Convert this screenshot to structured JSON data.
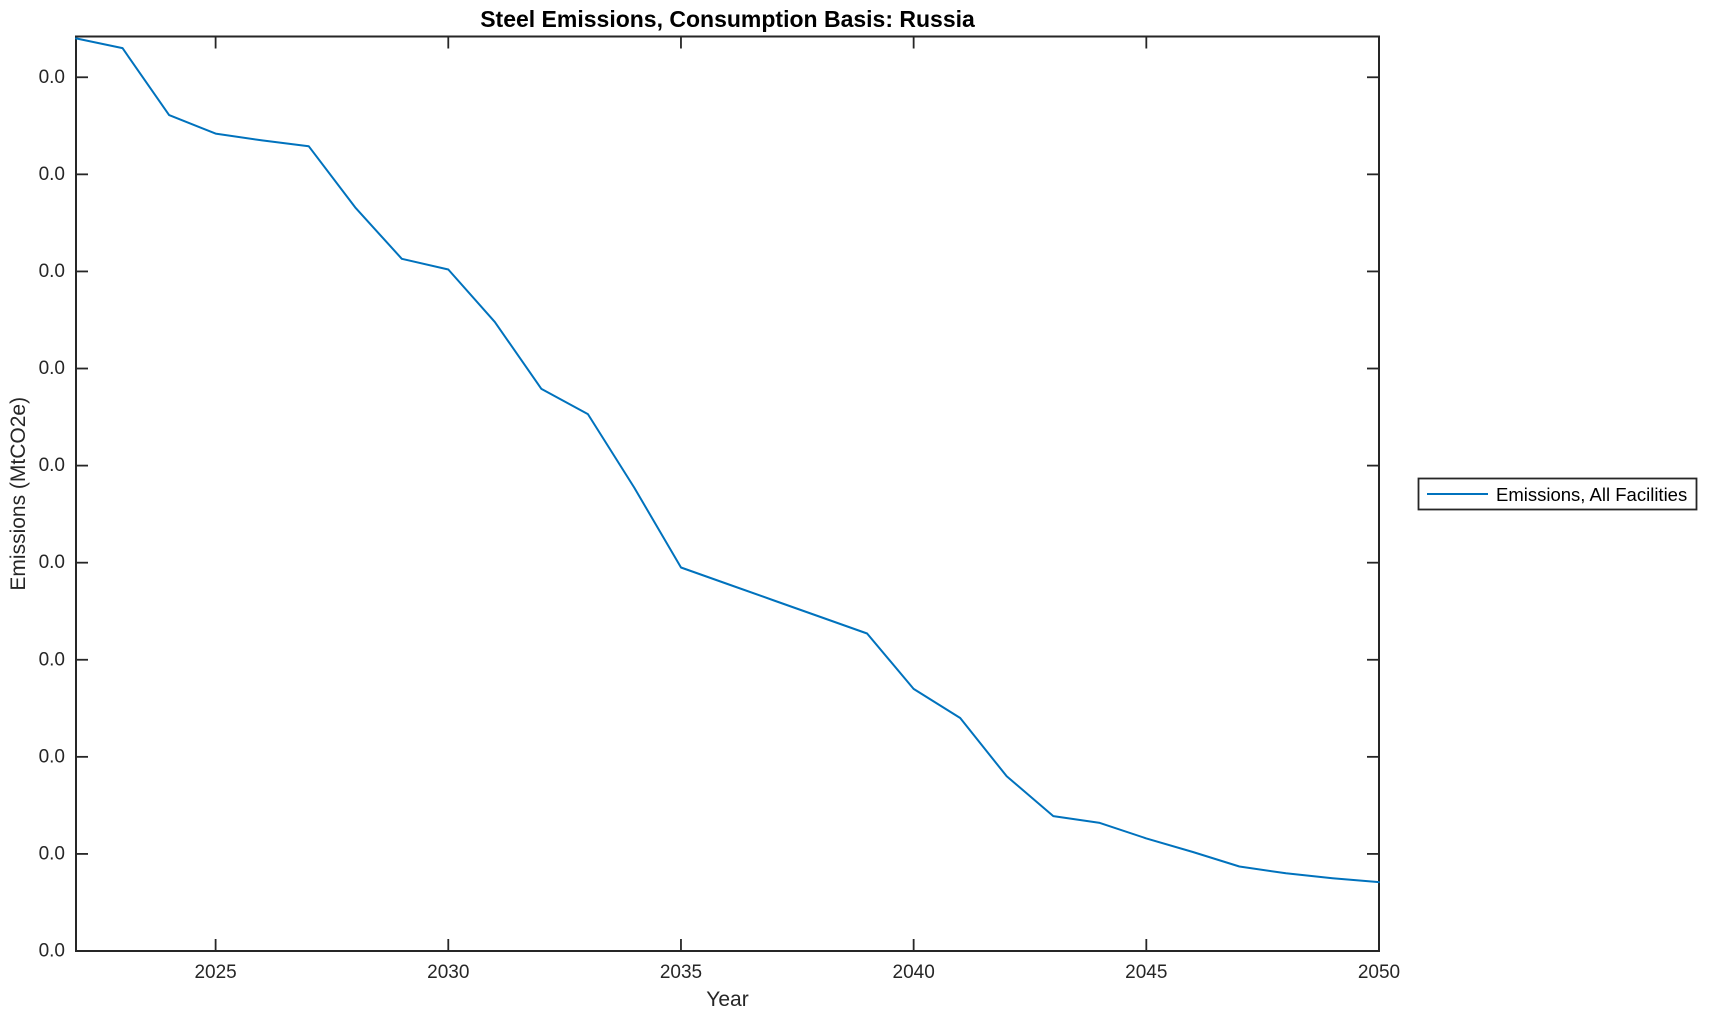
{
  "title": "Steel Emissions, Consumption Basis: Russia",
  "xlabel": "Year",
  "ylabel": "Emissions (MtCO2e)",
  "legend": {
    "label": "Emissions, All Facilities",
    "position": "outside-right-middle"
  },
  "colors": {
    "line": "#0072BD",
    "axis": "#262626",
    "text": "#000000",
    "background": "#FFFFFF"
  },
  "chart_data": {
    "type": "line",
    "title": "Steel Emissions, Consumption Basis: Russia",
    "xlabel": "Year",
    "ylabel": "Emissions (MtCO2e)",
    "grid": false,
    "box": true,
    "tick_direction": "in",
    "legend_position": "outside-right-middle",
    "xlim": [
      2022,
      2050
    ],
    "ylim": [
      0,
      9.42
    ],
    "x_ticks": [
      2025,
      2030,
      2035,
      2040,
      2045,
      2050
    ],
    "x_tick_labels": [
      "2025",
      "2030",
      "2035",
      "2040",
      "2045",
      "2050"
    ],
    "y_ticks": [
      0,
      1,
      2,
      3,
      4,
      5,
      6,
      7,
      8,
      9
    ],
    "y_tick_labels": [
      "0.0",
      "0.0",
      "0.0",
      "0.0",
      "0.0",
      "0.0",
      "0.0",
      "0.0",
      "0.0",
      "0.0"
    ],
    "y_unit_note": "values estimated in axis-tick intervals; every y tick label renders as 0.0",
    "series": [
      {
        "name": "Emissions, All Facilities",
        "color": "#0072BD",
        "x": [
          2022,
          2023,
          2024,
          2025,
          2026,
          2027,
          2028,
          2029,
          2030,
          2031,
          2032,
          2033,
          2034,
          2035,
          2036,
          2037,
          2038,
          2039,
          2040,
          2041,
          2042,
          2043,
          2044,
          2045,
          2046,
          2047,
          2048,
          2049,
          2050
        ],
        "values": [
          9.4,
          9.3,
          8.61,
          8.42,
          8.35,
          8.29,
          7.66,
          7.13,
          7.02,
          6.48,
          5.79,
          5.53,
          4.77,
          3.95,
          3.78,
          3.61,
          3.44,
          3.27,
          2.7,
          2.4,
          1.8,
          1.39,
          1.32,
          1.16,
          1.02,
          0.87,
          0.8,
          0.75,
          0.71
        ]
      }
    ]
  }
}
